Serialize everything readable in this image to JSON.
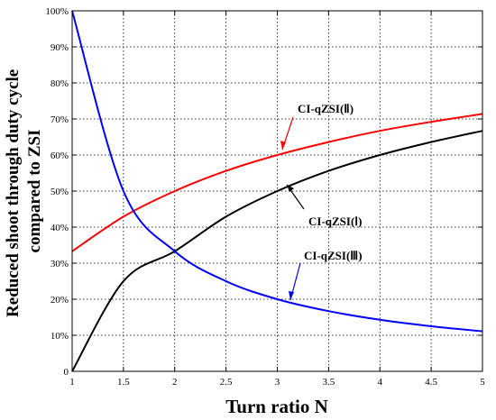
{
  "chart_data": {
    "type": "line",
    "xlabel": "Turn ratio N",
    "ylabel_lines": [
      "Reduced shoot through duty cycle",
      "compared to ZSI"
    ],
    "xlim": [
      1,
      5
    ],
    "ylim": [
      0,
      100
    ],
    "grid": true,
    "x_ticks": [
      "1",
      "1.5",
      "2",
      "2.5",
      "3",
      "3.5",
      "4",
      "4.5",
      "5"
    ],
    "y_ticks": [
      "0",
      "10%",
      "20%",
      "30%",
      "40%",
      "50%",
      "60%",
      "70%",
      "80%",
      "90%",
      "100%"
    ],
    "x": [
      1,
      1.5,
      2,
      2.5,
      3,
      3.5,
      4,
      4.5,
      5
    ],
    "series": [
      {
        "name": "CI-qZSI(Ⅰ)",
        "color": "#000000",
        "values": [
          0,
          25,
          33.3,
          42.9,
          50,
          55.6,
          60,
          63.6,
          66.7
        ]
      },
      {
        "name": "CI-qZSI(Ⅱ)",
        "color": "#ff0000",
        "values": [
          33.3,
          42.9,
          50,
          55.6,
          60,
          63.6,
          66.7,
          69.2,
          71.4
        ]
      },
      {
        "name": "CI-qZSI(Ⅲ)",
        "color": "#0000ff",
        "values": [
          100,
          50,
          33.3,
          25,
          20,
          16.7,
          14.3,
          12.5,
          11.1
        ]
      }
    ],
    "annotations": [
      {
        "text": "CI-qZSI(Ⅱ)",
        "color": "#ff0000"
      },
      {
        "text": "CI-qZSI(Ⅰ)",
        "color": "#000000"
      },
      {
        "text": "CI-qZSI(Ⅲ)",
        "color": "#0000ff"
      }
    ]
  }
}
